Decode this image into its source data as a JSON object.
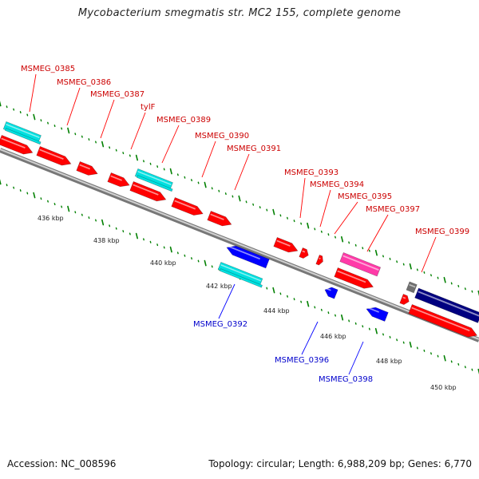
{
  "title": "Mycobacterium smegmatis str. MC2 155, complete genome",
  "footer": {
    "accession": "Accession: NC_008596",
    "summary": "Topology: circular; Length: 6,988,209 bp; Genes: 6,770"
  },
  "colors": {
    "cds_forward": "#ff0000",
    "cds_reverse": "#0000ff",
    "gene_cyan": "#00e0e0",
    "gene_pink": "#ff3aa8",
    "gene_navy": "#000080",
    "gene_gray": "#707070",
    "tick_green": "#008000",
    "backbone": "#8c8c8c",
    "label_forward": "#cc0000",
    "label_reverse": "#0000cc"
  },
  "kbp_labels": [
    "436 kbp",
    "438 kbp",
    "440 kbp",
    "442 kbp",
    "444 kbp",
    "446 kbp",
    "448 kbp",
    "450 kbp"
  ],
  "forward_labels": [
    "MSMEG_0385",
    "MSMEG_0386",
    "MSMEG_0387",
    "tylF",
    "MSMEG_0389",
    "MSMEG_0390",
    "MSMEG_0391",
    "MSMEG_0393",
    "MSMEG_0394",
    "MSMEG_0395",
    "MSMEG_0397",
    "MSMEG_0399"
  ],
  "reverse_labels": [
    "MSMEG_0392",
    "MSMEG_0396",
    "MSMEG_0398"
  ]
}
